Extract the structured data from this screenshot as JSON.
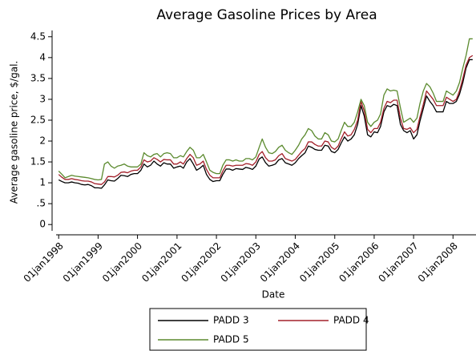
{
  "chart_data": {
    "type": "line",
    "title": "Average Gasoline Prices by Area",
    "xlabel": "Date",
    "ylabel": "Average gasoline price, $/gal.",
    "x": [
      "01jan1998",
      "01feb1998",
      "01mar1998",
      "01apr1998",
      "01may1998",
      "01jun1998",
      "01jul1998",
      "01aug1998",
      "01sep1998",
      "01oct1998",
      "01nov1998",
      "01dec1998",
      "01jan1999",
      "01feb1999",
      "01mar1999",
      "01apr1999",
      "01may1999",
      "01jun1999",
      "01jul1999",
      "01aug1999",
      "01sep1999",
      "01oct1999",
      "01nov1999",
      "01dec1999",
      "01jan2000",
      "01feb2000",
      "01mar2000",
      "01apr2000",
      "01may2000",
      "01jun2000",
      "01jul2000",
      "01aug2000",
      "01sep2000",
      "01oct2000",
      "01nov2000",
      "01dec2000",
      "01jan2001",
      "01feb2001",
      "01mar2001",
      "01apr2001",
      "01may2001",
      "01jun2001",
      "01jul2001",
      "01aug2001",
      "01sep2001",
      "01oct2001",
      "01nov2001",
      "01dec2001",
      "01jan2002",
      "01feb2002",
      "01mar2002",
      "01apr2002",
      "01may2002",
      "01jun2002",
      "01jul2002",
      "01aug2002",
      "01sep2002",
      "01oct2002",
      "01nov2002",
      "01dec2002",
      "01jan2003",
      "01feb2003",
      "01mar2003",
      "01apr2003",
      "01may2003",
      "01jun2003",
      "01jul2003",
      "01aug2003",
      "01sep2003",
      "01oct2003",
      "01nov2003",
      "01dec2003",
      "01jan2004",
      "01feb2004",
      "01mar2004",
      "01apr2004",
      "01may2004",
      "01jun2004",
      "01jul2004",
      "01aug2004",
      "01sep2004",
      "01oct2004",
      "01nov2004",
      "01dec2004",
      "01jan2005",
      "01feb2005",
      "01mar2005",
      "01apr2005",
      "01may2005",
      "01jun2005",
      "01jul2005",
      "01aug2005",
      "01sep2005",
      "01oct2005",
      "01nov2005",
      "01dec2005",
      "01jan2006",
      "01feb2006",
      "01mar2006",
      "01apr2006",
      "01may2006",
      "01jun2006",
      "01jul2006",
      "01aug2006",
      "01sep2006",
      "01oct2006",
      "01nov2006",
      "01dec2006",
      "01jan2007",
      "01feb2007",
      "01mar2007",
      "01apr2007",
      "01may2007",
      "01jun2007",
      "01jul2007",
      "01aug2007",
      "01sep2007",
      "01oct2007",
      "01nov2007",
      "01dec2007",
      "01jan2008",
      "01feb2008",
      "01mar2008",
      "01apr2008",
      "01may2008",
      "01jun2008",
      "01jul2008"
    ],
    "series": [
      {
        "name": "PADD 3",
        "color": "#000000",
        "values": [
          1.07,
          1.03,
          1.0,
          1.0,
          1.02,
          1.0,
          0.99,
          0.96,
          0.95,
          0.96,
          0.93,
          0.88,
          0.88,
          0.87,
          0.95,
          1.07,
          1.05,
          1.04,
          1.1,
          1.18,
          1.17,
          1.15,
          1.2,
          1.22,
          1.22,
          1.3,
          1.45,
          1.38,
          1.42,
          1.52,
          1.45,
          1.4,
          1.48,
          1.45,
          1.45,
          1.35,
          1.38,
          1.4,
          1.35,
          1.5,
          1.58,
          1.45,
          1.3,
          1.35,
          1.42,
          1.2,
          1.08,
          1.03,
          1.05,
          1.05,
          1.2,
          1.33,
          1.33,
          1.3,
          1.34,
          1.33,
          1.32,
          1.37,
          1.35,
          1.32,
          1.4,
          1.57,
          1.62,
          1.48,
          1.4,
          1.42,
          1.45,
          1.55,
          1.58,
          1.48,
          1.45,
          1.42,
          1.48,
          1.58,
          1.65,
          1.72,
          1.88,
          1.85,
          1.8,
          1.78,
          1.78,
          1.9,
          1.88,
          1.75,
          1.72,
          1.8,
          1.95,
          2.1,
          2.0,
          2.05,
          2.15,
          2.4,
          2.85,
          2.6,
          2.15,
          2.1,
          2.22,
          2.2,
          2.35,
          2.7,
          2.85,
          2.82,
          2.88,
          2.85,
          2.4,
          2.25,
          2.2,
          2.25,
          2.05,
          2.15,
          2.48,
          2.78,
          3.08,
          2.95,
          2.85,
          2.7,
          2.7,
          2.7,
          2.95,
          2.9,
          2.9,
          2.95,
          3.12,
          3.4,
          3.75,
          3.95,
          3.95
        ]
      },
      {
        "name": "PADD 4",
        "color": "#a3202a",
        "values": [
          1.2,
          1.13,
          1.08,
          1.08,
          1.1,
          1.08,
          1.07,
          1.05,
          1.04,
          1.04,
          1.02,
          0.98,
          0.97,
          0.96,
          1.02,
          1.15,
          1.15,
          1.14,
          1.18,
          1.25,
          1.26,
          1.24,
          1.28,
          1.3,
          1.3,
          1.38,
          1.55,
          1.5,
          1.52,
          1.6,
          1.56,
          1.5,
          1.56,
          1.55,
          1.55,
          1.45,
          1.45,
          1.5,
          1.45,
          1.58,
          1.68,
          1.6,
          1.42,
          1.45,
          1.52,
          1.32,
          1.18,
          1.12,
          1.12,
          1.12,
          1.28,
          1.42,
          1.42,
          1.4,
          1.42,
          1.42,
          1.42,
          1.46,
          1.45,
          1.42,
          1.5,
          1.68,
          1.75,
          1.6,
          1.52,
          1.52,
          1.55,
          1.65,
          1.7,
          1.58,
          1.55,
          1.52,
          1.56,
          1.66,
          1.75,
          1.82,
          1.98,
          1.98,
          1.92,
          1.88,
          1.88,
          2.0,
          1.98,
          1.85,
          1.8,
          1.88,
          2.05,
          2.22,
          2.12,
          2.15,
          2.28,
          2.5,
          2.95,
          2.72,
          2.28,
          2.2,
          2.3,
          2.3,
          2.45,
          2.78,
          2.95,
          2.92,
          2.98,
          2.98,
          2.55,
          2.3,
          2.28,
          2.32,
          2.2,
          2.28,
          2.58,
          2.88,
          3.2,
          3.1,
          3.0,
          2.85,
          2.85,
          2.85,
          3.05,
          3.0,
          2.95,
          3.0,
          3.2,
          3.5,
          3.82,
          4.0,
          4.05
        ]
      },
      {
        "name": "PADD 5",
        "color": "#5b8a2e",
        "values": [
          1.28,
          1.2,
          1.12,
          1.15,
          1.18,
          1.16,
          1.15,
          1.14,
          1.13,
          1.12,
          1.1,
          1.08,
          1.07,
          1.08,
          1.45,
          1.5,
          1.4,
          1.35,
          1.4,
          1.42,
          1.45,
          1.4,
          1.38,
          1.38,
          1.38,
          1.45,
          1.72,
          1.65,
          1.62,
          1.68,
          1.7,
          1.62,
          1.7,
          1.72,
          1.7,
          1.6,
          1.6,
          1.65,
          1.62,
          1.75,
          1.85,
          1.78,
          1.6,
          1.6,
          1.68,
          1.5,
          1.3,
          1.25,
          1.22,
          1.22,
          1.42,
          1.55,
          1.55,
          1.52,
          1.55,
          1.52,
          1.52,
          1.58,
          1.58,
          1.55,
          1.62,
          1.85,
          2.05,
          1.85,
          1.72,
          1.7,
          1.75,
          1.85,
          1.9,
          1.78,
          1.72,
          1.68,
          1.78,
          1.9,
          2.05,
          2.15,
          2.3,
          2.25,
          2.12,
          2.05,
          2.05,
          2.2,
          2.15,
          2.0,
          1.98,
          2.05,
          2.25,
          2.45,
          2.35,
          2.35,
          2.45,
          2.7,
          3.0,
          2.85,
          2.45,
          2.35,
          2.45,
          2.5,
          2.65,
          3.1,
          3.25,
          3.2,
          3.22,
          3.2,
          2.8,
          2.45,
          2.5,
          2.55,
          2.45,
          2.55,
          2.9,
          3.2,
          3.38,
          3.3,
          3.15,
          2.95,
          2.95,
          2.95,
          3.2,
          3.15,
          3.1,
          3.2,
          3.4,
          3.75,
          4.05,
          4.45,
          4.45
        ]
      }
    ],
    "xlim": [
      "01nov1997",
      "01aug2008"
    ],
    "xticks": [
      "01jan1998",
      "01jan1999",
      "01jan2000",
      "01jan2001",
      "01jan2002",
      "01jan2003",
      "01jan2004",
      "01jan2005",
      "01jan2006",
      "01jan2007",
      "01jan2008"
    ],
    "ylim": [
      -0.15,
      4.65
    ],
    "yticks": [
      0,
      {
        "value": 0.5,
        "label": ".5"
      },
      1,
      1.5,
      2,
      2.5,
      3,
      3.5,
      4,
      4.5
    ],
    "grid": false,
    "legend": "bottom"
  }
}
